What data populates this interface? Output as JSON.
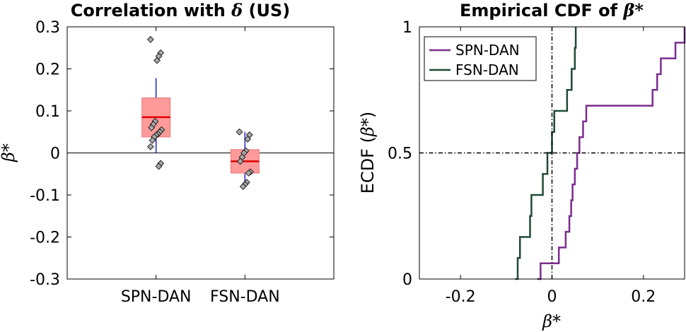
{
  "chart_data": [
    {
      "type": "box",
      "title_prefix": "Correlation with ",
      "title_symbol": "δ",
      "title_suffix": " (US)",
      "ylabel": "β*",
      "xlabel": "",
      "ylim": [
        -0.3,
        0.3
      ],
      "yticks": [
        -0.3,
        -0.2,
        -0.1,
        0,
        0.1,
        0.2,
        0.3
      ],
      "ytick_labels": [
        "-0.3",
        "-0.2",
        "-0.1",
        "0",
        "0.1",
        "0.2",
        "0.3"
      ],
      "categories": [
        "SPN-DAN",
        "FSN-DAN"
      ],
      "zero_line": true,
      "boxes": [
        {
          "name": "SPN-DAN",
          "q1": 0.038,
          "median": 0.085,
          "q3": 0.131,
          "whisker_low": 0.0,
          "whisker_high": 0.178,
          "points": [
            0.27,
            0.238,
            0.23,
            0.22,
            0.075,
            0.068,
            0.06,
            0.055,
            0.05,
            0.045,
            0.042,
            0.038,
            0.03,
            0.015,
            -0.025,
            -0.032
          ]
        },
        {
          "name": "FSN-DAN",
          "q1": -0.048,
          "median": -0.02,
          "q3": 0.008,
          "whisker_low": -0.075,
          "whisker_high": 0.05,
          "points": [
            0.05,
            0.043,
            0.033,
            0.005,
            0.0,
            -0.01,
            -0.02,
            -0.045,
            -0.048,
            -0.07,
            -0.075,
            -0.08
          ]
        }
      ],
      "colors": {
        "box_fill": "#ff9a9a",
        "box_edge": "#e87a7a",
        "median": "#e00000",
        "whisker": "#2222cc",
        "point_fill": "#a8a8a8"
      }
    },
    {
      "type": "line",
      "title_prefix": "Empirical CDF of ",
      "title_symbol": "β*",
      "xlabel": "β*",
      "ylabel_prefix": "ECDF (",
      "ylabel_symbol": "β*",
      "ylabel_suffix": ")",
      "xlim": [
        -0.29,
        0.29
      ],
      "ylim": [
        0,
        1
      ],
      "xticks": [
        -0.2,
        0,
        0.2
      ],
      "xtick_labels": [
        "-0.2",
        "0",
        "0.2"
      ],
      "yticks": [
        0,
        0.5,
        1
      ],
      "ytick_labels": [
        "0",
        "0.5",
        "1"
      ],
      "reference_lines": {
        "x": 0,
        "y": 0.5
      },
      "legend": "top-left",
      "series": [
        {
          "name": "SPN-DAN",
          "color": "#7b2d8e",
          "steps": [
            [
              -0.032,
              0.0
            ],
            [
              -0.025,
              0.0625
            ],
            [
              0.015,
              0.125
            ],
            [
              0.03,
              0.1875
            ],
            [
              0.038,
              0.25
            ],
            [
              0.042,
              0.3125
            ],
            [
              0.045,
              0.375
            ],
            [
              0.05,
              0.4375
            ],
            [
              0.055,
              0.5
            ],
            [
              0.06,
              0.5625
            ],
            [
              0.068,
              0.625
            ],
            [
              0.075,
              0.6875
            ],
            [
              0.22,
              0.75
            ],
            [
              0.23,
              0.8125
            ],
            [
              0.238,
              0.875
            ],
            [
              0.27,
              0.9375
            ],
            [
              0.29,
              1.0
            ]
          ]
        },
        {
          "name": "FSN-DAN",
          "color": "#1f4a33",
          "steps": [
            [
              -0.08,
              0.0
            ],
            [
              -0.075,
              0.0833
            ],
            [
              -0.07,
              0.1667
            ],
            [
              -0.048,
              0.25
            ],
            [
              -0.045,
              0.3333
            ],
            [
              -0.02,
              0.4167
            ],
            [
              -0.01,
              0.5
            ],
            [
              0.0,
              0.5833
            ],
            [
              0.005,
              0.6667
            ],
            [
              0.033,
              0.75
            ],
            [
              0.043,
              0.8333
            ],
            [
              0.05,
              0.9167
            ],
            [
              0.052,
              1.0
            ]
          ]
        }
      ]
    }
  ]
}
